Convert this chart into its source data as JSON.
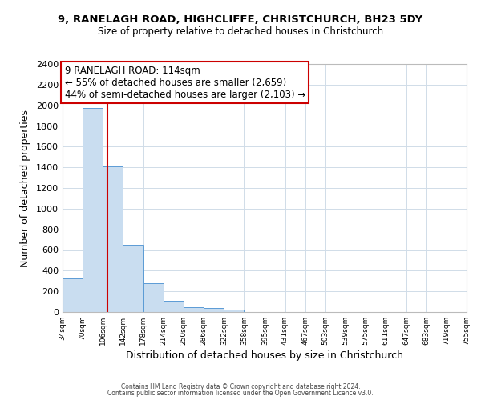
{
  "title1": "9, RANELAGH ROAD, HIGHCLIFFE, CHRISTCHURCH, BH23 5DY",
  "title2": "Size of property relative to detached houses in Christchurch",
  "xlabel": "Distribution of detached houses by size in Christchurch",
  "ylabel": "Number of detached properties",
  "bin_edges": [
    34,
    70,
    106,
    142,
    178,
    214,
    250,
    286,
    322,
    358,
    395,
    431,
    467,
    503,
    539,
    575,
    611,
    647,
    683,
    719,
    755
  ],
  "bar_heights": [
    325,
    1975,
    1410,
    650,
    275,
    105,
    50,
    35,
    25,
    0,
    0,
    0,
    0,
    0,
    0,
    0,
    0,
    0,
    0,
    0
  ],
  "bar_color": "#c9ddf0",
  "bar_edge_color": "#5b9bd5",
  "property_line_x": 114,
  "property_line_color": "#cc0000",
  "ylim": [
    0,
    2400
  ],
  "yticks": [
    0,
    200,
    400,
    600,
    800,
    1000,
    1200,
    1400,
    1600,
    1800,
    2000,
    2200,
    2400
  ],
  "annotation_title": "9 RANELAGH ROAD: 114sqm",
  "annotation_line1": "← 55% of detached houses are smaller (2,659)",
  "annotation_line2": "44% of semi-detached houses are larger (2,103) →",
  "annotation_box_color": "#ffffff",
  "annotation_box_edge": "#cc0000",
  "footer1": "Contains HM Land Registry data © Crown copyright and database right 2024.",
  "footer2": "Contains public sector information licensed under the Open Government Licence v3.0.",
  "background_color": "#ffffff",
  "grid_color": "#d0dce8"
}
